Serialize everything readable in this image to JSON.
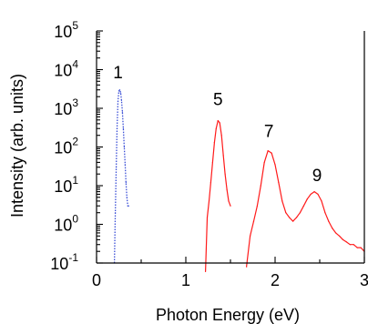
{
  "chart_data": {
    "type": "line",
    "title": "",
    "xlabel": "Photon Energy (eV)",
    "ylabel": "Intensity (arb. units)",
    "xlim": [
      0,
      3
    ],
    "ylim_log10": [
      -1,
      5
    ],
    "y_scale": "log",
    "x_ticks": [
      "0",
      "1",
      "2",
      "3"
    ],
    "x_tick_values": [
      0,
      1,
      2,
      3
    ],
    "y_tick_exponents": [
      -1,
      0,
      1,
      2,
      3,
      4,
      5
    ],
    "y_tick_base": "10",
    "grid": false,
    "series": [
      {
        "color": "#3b4fd6",
        "style": "dotted",
        "x": [
          0.2,
          0.21,
          0.22,
          0.23,
          0.24,
          0.25,
          0.26,
          0.27,
          0.28,
          0.29,
          0.3,
          0.31,
          0.32,
          0.33,
          0.34,
          0.35,
          0.36
        ],
        "y": [
          0.1,
          2,
          30,
          300,
          1500,
          2800,
          3000,
          2500,
          1600,
          800,
          300,
          100,
          35,
          12,
          5,
          3,
          3
        ]
      },
      {
        "color": "#ff1a1a",
        "style": "solid",
        "x": [
          1.22,
          1.24,
          1.26,
          1.28,
          1.3,
          1.32,
          1.34,
          1.36,
          1.38,
          1.4,
          1.42,
          1.44,
          1.46,
          1.48,
          1.5
        ],
        "y": [
          0.06,
          1.5,
          4,
          12,
          40,
          130,
          300,
          480,
          420,
          200,
          60,
          20,
          8,
          4,
          3
        ]
      },
      {
        "color": "#ff1a1a",
        "style": "solid",
        "x": [
          1.68,
          1.72,
          1.76,
          1.8,
          1.84,
          1.88,
          1.92,
          1.96,
          2.0,
          2.04,
          2.08,
          2.12,
          2.16,
          2.2,
          2.24,
          2.28,
          2.32,
          2.36,
          2.4,
          2.44,
          2.48,
          2.52,
          2.56,
          2.6,
          2.64,
          2.68,
          2.72,
          2.76,
          2.8,
          2.84,
          2.88,
          2.92,
          2.96,
          3.0
        ],
        "y": [
          0.08,
          0.5,
          1.2,
          3,
          10,
          40,
          80,
          70,
          35,
          12,
          4,
          2,
          1.5,
          1.2,
          1.5,
          2,
          3,
          4.5,
          6,
          7,
          6,
          4,
          2,
          1.2,
          0.8,
          0.6,
          0.5,
          0.4,
          0.35,
          0.3,
          0.3,
          0.25,
          0.25,
          0.2
        ]
      }
    ],
    "annotations": [
      {
        "text": "1",
        "x": 0.24,
        "y": 6000
      },
      {
        "text": "5",
        "x": 1.36,
        "y": 1200
      },
      {
        "text": "7",
        "x": 1.93,
        "y": 180
      },
      {
        "text": "9",
        "x": 2.47,
        "y": 13
      }
    ]
  }
}
